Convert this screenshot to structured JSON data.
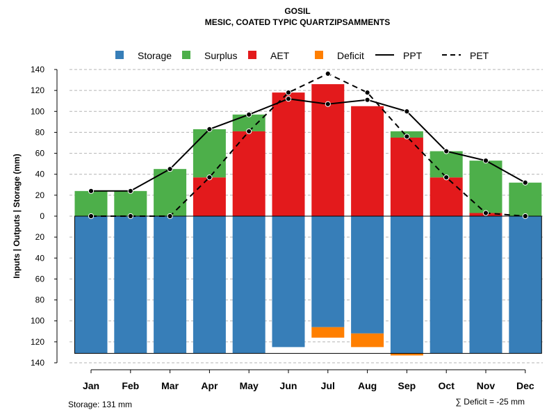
{
  "chart_data": {
    "type": "bar",
    "title": "GOSIL",
    "subtitle": "MESIC, COATED TYPIC QUARTZIPSAMMENTS",
    "ylabel": "Inputs | Outputs | Storage    (mm)",
    "ylim": [
      -140,
      140
    ],
    "ytick_values": [
      140,
      120,
      100,
      80,
      60,
      40,
      20,
      0,
      -20,
      -40,
      -60,
      -80,
      -100,
      -120,
      -140
    ],
    "ytick_labels": [
      "140",
      "120",
      "100",
      "80",
      "60",
      "40",
      "20",
      "0",
      "20",
      "40",
      "60",
      "80",
      "100",
      "120",
      "140"
    ],
    "categories": [
      "Jan",
      "Feb",
      "Mar",
      "Apr",
      "May",
      "Jun",
      "Jul",
      "Aug",
      "Sep",
      "Oct",
      "Nov",
      "Dec"
    ],
    "stacked_series": [
      {
        "name": "AET",
        "color": "#e31a1c",
        "values": [
          0,
          0,
          0,
          37,
          81,
          118,
          126,
          105,
          75,
          37,
          3,
          0
        ]
      },
      {
        "name": "Surplus",
        "color": "#4daf4a",
        "values": [
          24,
          24,
          45,
          46,
          16,
          0,
          0,
          0,
          6,
          25,
          50,
          32
        ]
      }
    ],
    "storage": {
      "name": "Storage",
      "color": "#377eb8",
      "values": [
        131,
        131,
        131,
        131,
        131,
        125,
        106,
        112,
        131,
        131,
        131,
        131
      ]
    },
    "deficit": {
      "name": "Deficit",
      "color": "#ff7f00",
      "values": [
        0,
        0,
        0,
        0,
        0,
        0,
        10,
        13,
        2,
        0,
        0,
        0
      ]
    },
    "lines": [
      {
        "name": "PPT",
        "style": "solid",
        "values": [
          24,
          24,
          45,
          83,
          97,
          112,
          107,
          111,
          100,
          62,
          53,
          32
        ]
      },
      {
        "name": "PET",
        "style": "dashed",
        "values": [
          0,
          0,
          0,
          37,
          81,
          118,
          136,
          118,
          76,
          37,
          3,
          0
        ]
      }
    ],
    "storage_capacity": 131,
    "legend": [
      "Storage",
      "Surplus",
      "AET",
      "Deficit",
      "PPT",
      "PET"
    ],
    "legend_position": "top",
    "grid": true
  },
  "footer": {
    "storage_label": "Storage: 131 mm",
    "deficit_label": "∑ Deficit = -25 mm"
  }
}
